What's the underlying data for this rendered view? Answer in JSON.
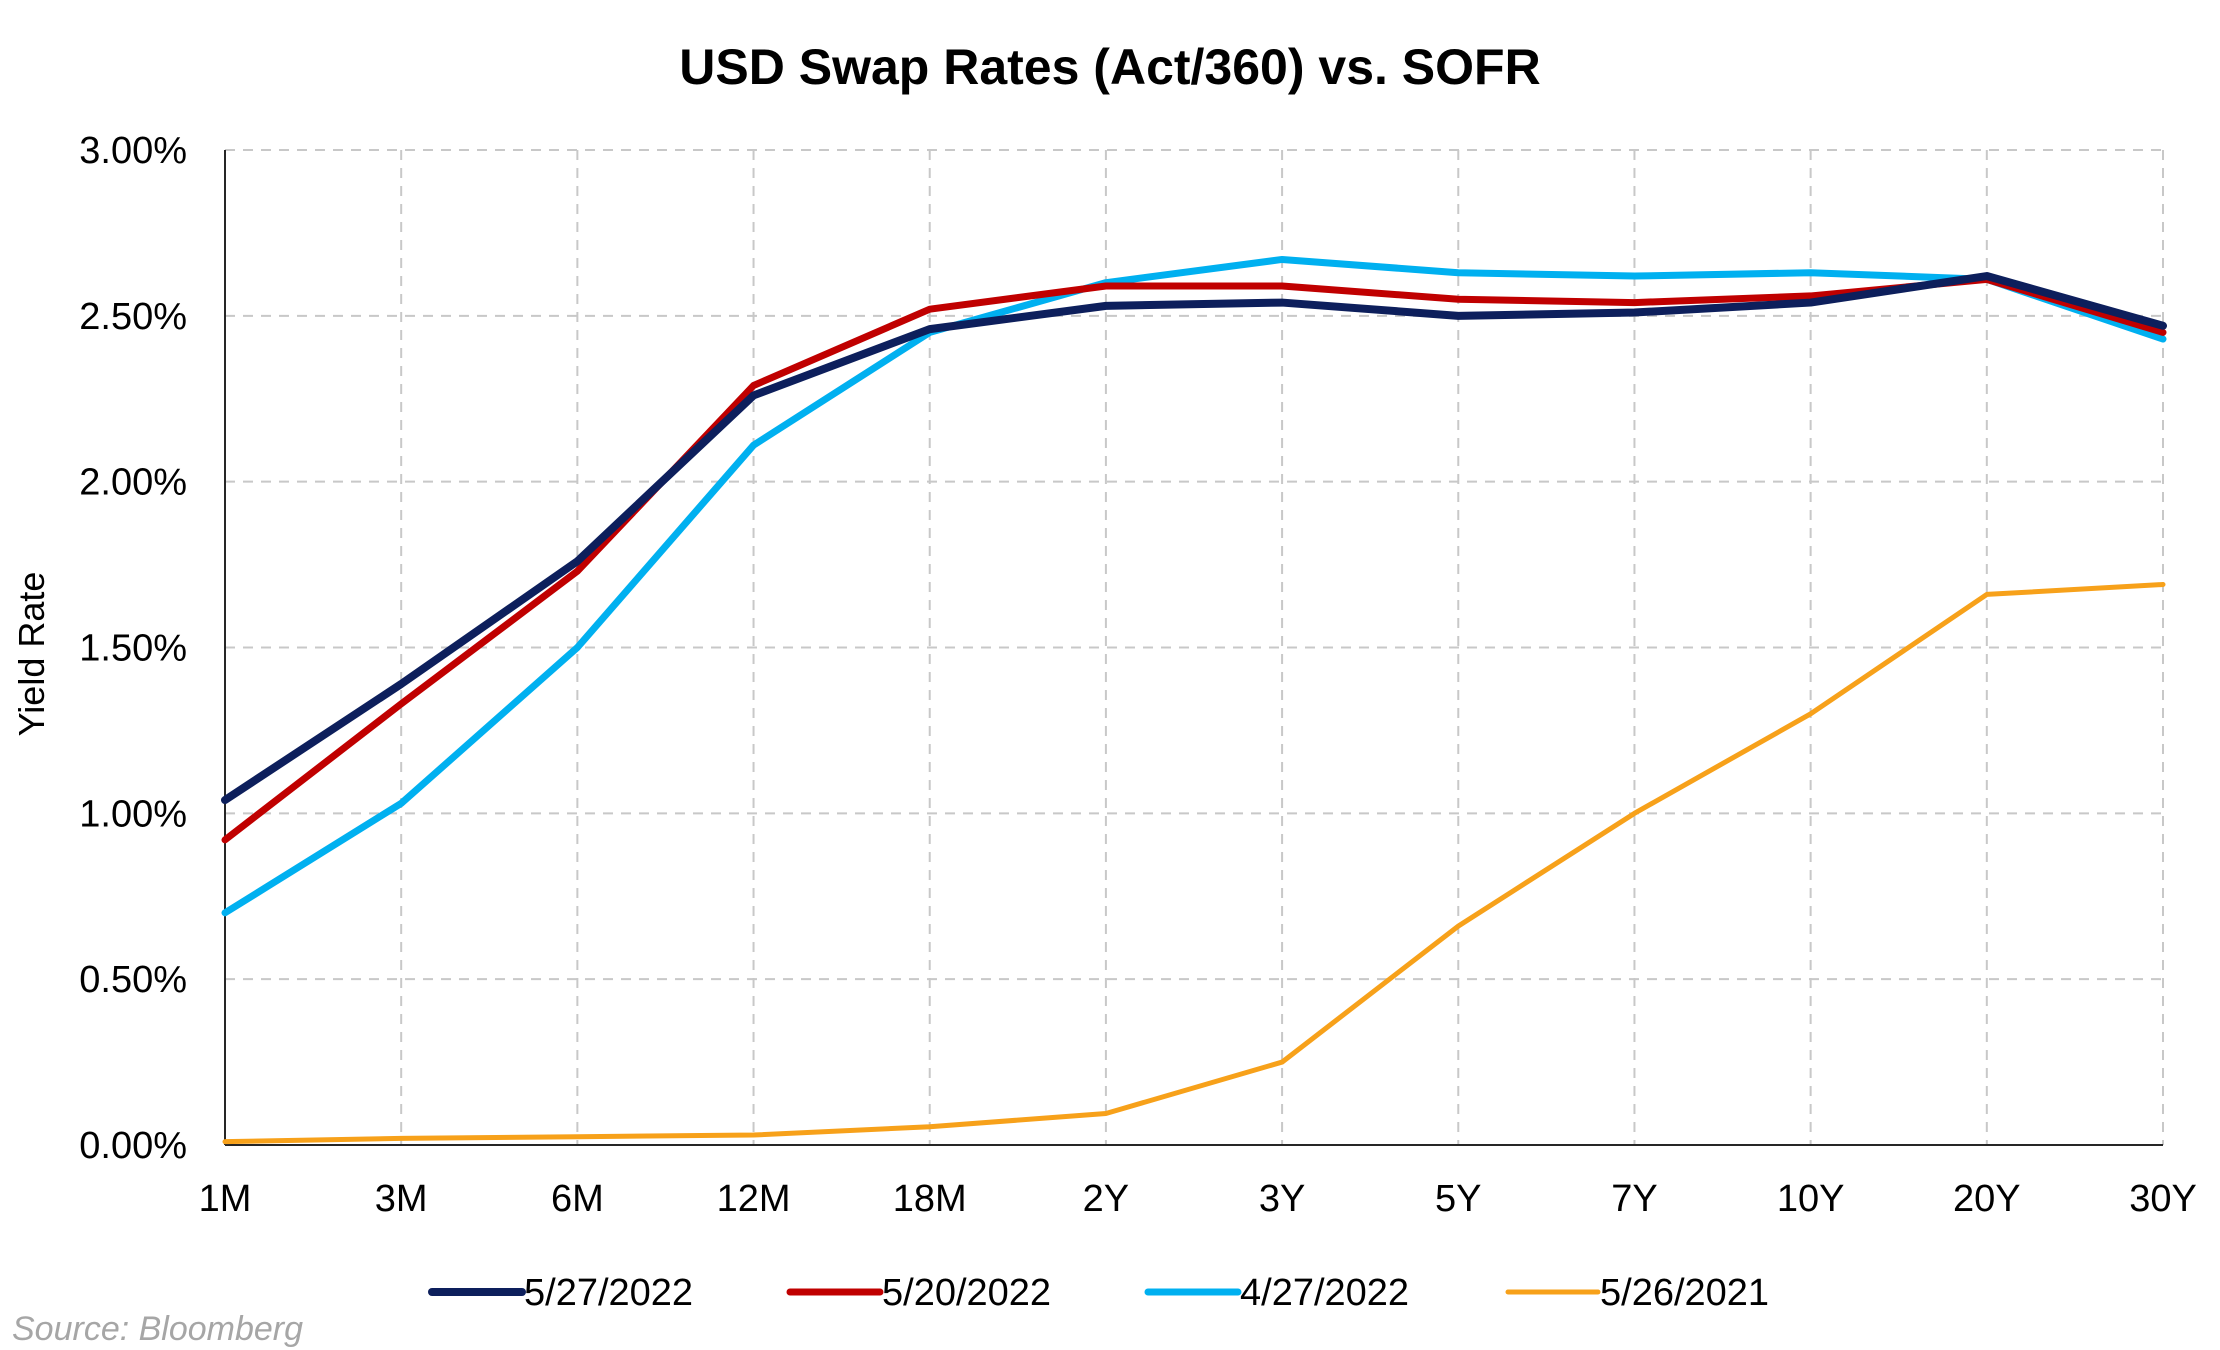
{
  "chart_data": {
    "type": "line",
    "title": "USD Swap Rates (Act/360) vs. SOFR",
    "xlabel": "",
    "ylabel": "Yield Rate",
    "categories": [
      "1M",
      "3M",
      "6M",
      "12M",
      "18M",
      "2Y",
      "3Y",
      "5Y",
      "7Y",
      "10Y",
      "20Y",
      "30Y"
    ],
    "ylim": [
      0,
      3.0
    ],
    "yticks": [
      0,
      0.5,
      1.0,
      1.5,
      2.0,
      2.5,
      3.0
    ],
    "ytick_labels": [
      "0.00%",
      "0.50%",
      "1.00%",
      "1.50%",
      "2.00%",
      "2.50%",
      "3.00%"
    ],
    "grid": true,
    "legend_position": "bottom",
    "series": [
      {
        "name": "5/27/2022",
        "color": "#0d1f5c",
        "values": [
          1.04,
          1.39,
          1.76,
          2.26,
          2.46,
          2.53,
          2.54,
          2.5,
          2.51,
          2.54,
          2.62,
          2.47
        ]
      },
      {
        "name": "5/20/2022",
        "color": "#c00000",
        "values": [
          0.92,
          1.33,
          1.73,
          2.29,
          2.52,
          2.59,
          2.59,
          2.55,
          2.54,
          2.56,
          2.61,
          2.45
        ]
      },
      {
        "name": "4/27/2022",
        "color": "#00b0f0",
        "values": [
          0.7,
          1.03,
          1.5,
          2.11,
          2.45,
          2.6,
          2.67,
          2.63,
          2.62,
          2.63,
          2.61,
          2.43
        ]
      },
      {
        "name": "5/26/2021",
        "color": "#f7a11a",
        "values": [
          0.01,
          0.02,
          0.025,
          0.03,
          0.055,
          0.095,
          0.25,
          0.66,
          1.0,
          1.3,
          1.66,
          1.69
        ]
      }
    ]
  },
  "source": "Source: Bloomberg"
}
